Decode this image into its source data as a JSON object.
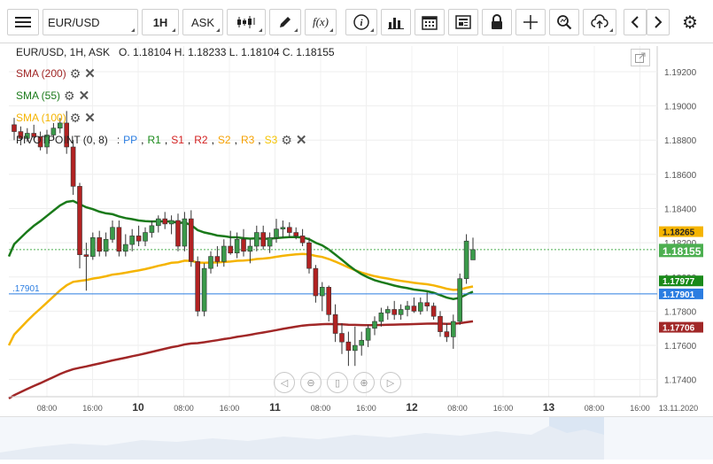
{
  "toolbar": {
    "symbol": "EUR/USD",
    "interval": "1H",
    "price_type": "ASK",
    "icons": [
      "menu-icon",
      "candlestick-icon",
      "pencil-icon",
      "function-icon",
      "info-icon",
      "bar-chart-icon",
      "calendar-icon",
      "news-icon",
      "lock-icon",
      "crosshair-icon",
      "zoom-icon",
      "upload-icon",
      "chevron-left-icon",
      "chevron-right-icon",
      "gear-icon"
    ],
    "function_label": "f(x)",
    "info_label": "i"
  },
  "header": {
    "pair": "EUR/USD, 1H, ASK",
    "ohlc": "O. 1.18104 H. 1.18233 L. 1.18104 C. 1.18155"
  },
  "legend": {
    "sma200": "SMA (200)",
    "sma55": "SMA (55)",
    "sma100": "SMA (100)",
    "pivot": "PIVOTPOINT (0, 8)",
    "pivot_sep": ":",
    "pivot_items": [
      {
        "label": "PP",
        "color": "#2b7de1"
      },
      {
        "label": "R1",
        "color": "#1a8a1a"
      },
      {
        "label": "S1",
        "color": "#d32020"
      },
      {
        "label": "R2",
        "color": "#d32020"
      },
      {
        "label": "S2",
        "color": "#f5a000"
      },
      {
        "label": "R3",
        "color": "#f5a000"
      },
      {
        "label": "S3",
        "color": "#f5c400"
      }
    ]
  },
  "pivot_line_label": ".17901",
  "price_axis": {
    "ticks": [
      "1.19200",
      "1.19000",
      "1.18800",
      "1.18600",
      "1.18400",
      "1.18200",
      "1.18000",
      "1.17800",
      "1.17600",
      "1.17400"
    ],
    "badges": [
      {
        "label": "1.18265",
        "bg": "#f5b400",
        "fg": "#222"
      },
      {
        "label": "1.18155",
        "bg": "#4caf50",
        "fg": "#fff"
      },
      {
        "label": "1.17977",
        "bg": "#1a8a1a",
        "fg": "#fff"
      },
      {
        "label": "1.17901",
        "bg": "#2b7de1",
        "fg": "#fff"
      },
      {
        "label": "1.17706",
        "bg": "#a12727",
        "fg": "#fff"
      }
    ]
  },
  "time_axis": {
    "labels": [
      "08:00",
      "16:00",
      "10",
      "08:00",
      "16:00",
      "11",
      "08:00",
      "16:00",
      "12",
      "08:00",
      "16:00",
      "13",
      "08:00",
      "16:00",
      "13.11.2020"
    ]
  },
  "colors": {
    "sma200": "#a12727",
    "sma55": "#1a7a1a",
    "sma100": "#f5b400",
    "pivot": "#2b7de1",
    "candle_up": "#3a9a4a",
    "candle_down": "#b22222"
  },
  "nav_buttons": [
    "rewind-icon",
    "zoom-out-icon",
    "reset-icon",
    "zoom-in-icon",
    "play-icon"
  ],
  "chart_data": {
    "type": "candlestick",
    "y_range": [
      1.173,
      1.1935
    ],
    "x_labels": [
      "08:00",
      "16:00",
      "10",
      "08:00",
      "16:00",
      "11",
      "08:00",
      "16:00",
      "12",
      "08:00",
      "16:00",
      "13",
      "08:00",
      "16:00",
      "13.11.2020"
    ],
    "candles": [
      [
        1.1889,
        1.1893,
        1.188,
        1.1885
      ],
      [
        1.1885,
        1.1888,
        1.1877,
        1.1881
      ],
      [
        1.1881,
        1.1887,
        1.1879,
        1.1884
      ],
      [
        1.1884,
        1.1889,
        1.188,
        1.1882
      ],
      [
        1.1882,
        1.1885,
        1.1874,
        1.1876
      ],
      [
        1.1876,
        1.1886,
        1.1872,
        1.1883
      ],
      [
        1.1883,
        1.189,
        1.188,
        1.1887
      ],
      [
        1.1887,
        1.1893,
        1.1884,
        1.189
      ],
      [
        1.189,
        1.1897,
        1.1872,
        1.1876
      ],
      [
        1.1876,
        1.188,
        1.1848,
        1.1853
      ],
      [
        1.1853,
        1.1855,
        1.1805,
        1.1813
      ],
      [
        1.1813,
        1.182,
        1.1792,
        1.1812
      ],
      [
        1.1812,
        1.1826,
        1.181,
        1.1823
      ],
      [
        1.1823,
        1.1827,
        1.1812,
        1.1815
      ],
      [
        1.1815,
        1.1826,
        1.1812,
        1.1822
      ],
      [
        1.1822,
        1.1833,
        1.182,
        1.1829
      ],
      [
        1.1829,
        1.1833,
        1.1812,
        1.1815
      ],
      [
        1.1815,
        1.1825,
        1.1812,
        1.1819
      ],
      [
        1.1819,
        1.1828,
        1.1815,
        1.1824
      ],
      [
        1.1824,
        1.183,
        1.1818,
        1.1821
      ],
      [
        1.1821,
        1.1829,
        1.1818,
        1.1826
      ],
      [
        1.1826,
        1.1833,
        1.1823,
        1.183
      ],
      [
        1.183,
        1.1836,
        1.1826,
        1.1834
      ],
      [
        1.1834,
        1.1838,
        1.1828,
        1.1831
      ],
      [
        1.1831,
        1.1836,
        1.1825,
        1.1833
      ],
      [
        1.1833,
        1.1837,
        1.1815,
        1.1818
      ],
      [
        1.1818,
        1.1838,
        1.1815,
        1.1834
      ],
      [
        1.1834,
        1.1839,
        1.1806,
        1.1809
      ],
      [
        1.1809,
        1.1812,
        1.1777,
        1.178
      ],
      [
        1.178,
        1.1808,
        1.1777,
        1.1805
      ],
      [
        1.1805,
        1.1815,
        1.1802,
        1.1812
      ],
      [
        1.1812,
        1.1818,
        1.1806,
        1.1809
      ],
      [
        1.1809,
        1.1822,
        1.1806,
        1.1818
      ],
      [
        1.1818,
        1.1827,
        1.1813,
        1.1814
      ],
      [
        1.1814,
        1.1826,
        1.1811,
        1.1822
      ],
      [
        1.1822,
        1.1828,
        1.1812,
        1.1815
      ],
      [
        1.1815,
        1.1822,
        1.1808,
        1.1818
      ],
      [
        1.1818,
        1.183,
        1.1815,
        1.1826
      ],
      [
        1.1826,
        1.183,
        1.1816,
        1.1818
      ],
      [
        1.1818,
        1.1826,
        1.1814,
        1.1823
      ],
      [
        1.1823,
        1.1834,
        1.182,
        1.1828
      ],
      [
        1.1828,
        1.1833,
        1.1823,
        1.1829
      ],
      [
        1.1829,
        1.1832,
        1.1823,
        1.1826
      ],
      [
        1.1826,
        1.1829,
        1.1822,
        1.1824
      ],
      [
        1.1824,
        1.1828,
        1.1818,
        1.182
      ],
      [
        1.182,
        1.1823,
        1.1802,
        1.1805
      ],
      [
        1.1805,
        1.1807,
        1.1785,
        1.1789
      ],
      [
        1.1789,
        1.1797,
        1.178,
        1.1794
      ],
      [
        1.1794,
        1.1795,
        1.1774,
        1.1778
      ],
      [
        1.1778,
        1.1784,
        1.1762,
        1.1767
      ],
      [
        1.1767,
        1.1773,
        1.1755,
        1.1762
      ],
      [
        1.1762,
        1.1768,
        1.1748,
        1.1757
      ],
      [
        1.1757,
        1.1771,
        1.1748,
        1.176
      ],
      [
        1.176,
        1.1768,
        1.1754,
        1.1763
      ],
      [
        1.1763,
        1.1772,
        1.1759,
        1.177
      ],
      [
        1.177,
        1.1777,
        1.1766,
        1.1774
      ],
      [
        1.1774,
        1.1782,
        1.1771,
        1.1779
      ],
      [
        1.1779,
        1.1783,
        1.1775,
        1.1781
      ],
      [
        1.1781,
        1.1786,
        1.1775,
        1.1778
      ],
      [
        1.1778,
        1.1784,
        1.1775,
        1.1781
      ],
      [
        1.1781,
        1.1786,
        1.1777,
        1.1783
      ],
      [
        1.1783,
        1.1788,
        1.1779,
        1.178
      ],
      [
        1.178,
        1.1788,
        1.1778,
        1.1785
      ],
      [
        1.1785,
        1.1791,
        1.178,
        1.1783
      ],
      [
        1.1783,
        1.1785,
        1.1775,
        1.1777
      ],
      [
        1.1777,
        1.178,
        1.1765,
        1.1768
      ],
      [
        1.1768,
        1.1773,
        1.1762,
        1.1765
      ],
      [
        1.1765,
        1.1778,
        1.1758,
        1.1774
      ],
      [
        1.1774,
        1.1802,
        1.1772,
        1.1799
      ],
      [
        1.1799,
        1.1825,
        1.1796,
        1.1821
      ],
      [
        1.181,
        1.1823,
        1.181,
        1.1816
      ]
    ]
  }
}
